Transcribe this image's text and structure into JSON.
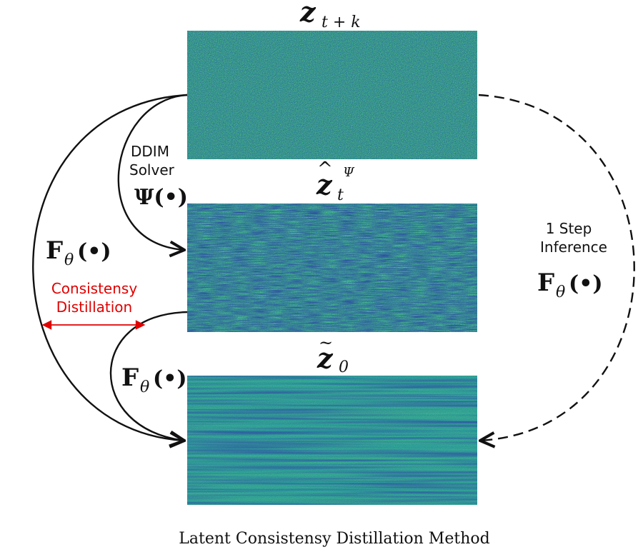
{
  "panels": {
    "top": {
      "label_base": "z",
      "label_sub": "t + k"
    },
    "middle": {
      "label_base": "z",
      "label_sub": "t",
      "label_sup": "Ψ"
    },
    "bottom": {
      "label_base": "z",
      "label_sub": "0"
    }
  },
  "arrows": {
    "ddim": {
      "line1": "DDIM",
      "line2": "Solver",
      "op": "Ψ(•)"
    },
    "outer": {
      "op_F": "F",
      "op_sub": "θ",
      "op_args": "(•)"
    },
    "inner": {
      "op_F": "F",
      "op_sub": "θ",
      "op_args": "(•)"
    },
    "one_step": {
      "line1": "1 Step",
      "line2": "Inference",
      "op_F": "F",
      "op_sub": "θ",
      "op_args": "(•)"
    }
  },
  "consistency": {
    "line1": "Consistensy",
    "line2": "Distillation"
  },
  "caption": "Latent Consistensy Distillation Method",
  "colors": {
    "accent_red": "#e00000",
    "line": "#111111",
    "noise_low": "#2a3f9a",
    "noise_mid": "#1e8fa0",
    "noise_high": "#4fd07a"
  }
}
